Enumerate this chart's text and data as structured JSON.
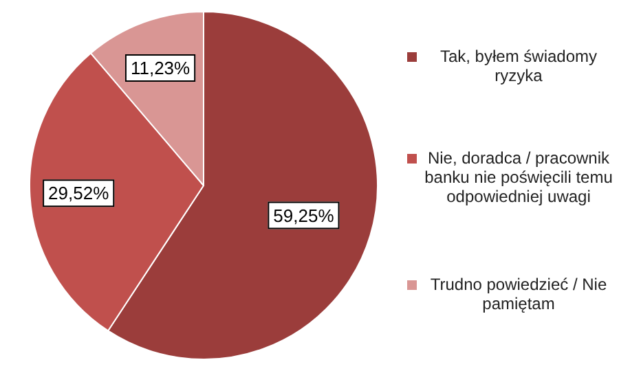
{
  "chart_data": {
    "type": "pie",
    "categories": [
      "Tak, byłem świadomy ryzyka",
      "Nie, doradca / pracownik banku nie poświęcili temu odpowiedniej uwagi",
      "Trudno powiedzieć / Nie pamiętam"
    ],
    "values": [
      59.25,
      29.52,
      11.23
    ],
    "colors": [
      "#9b3d3b",
      "#c0504d",
      "#d99694"
    ],
    "value_labels": [
      "59,25%",
      "29,52%",
      "11,23%"
    ],
    "legend": "right"
  }
}
